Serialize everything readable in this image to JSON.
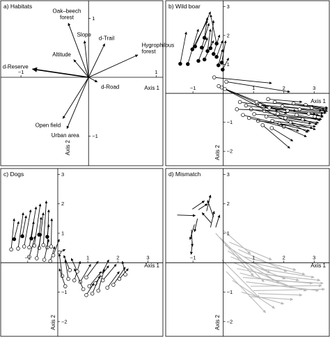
{
  "chart_data": [
    {
      "type": "scatter",
      "title": "a) Habitats",
      "xlabel": "Axis 1",
      "ylabel": "Axis 2",
      "xlim": [
        -1.3,
        1.1
      ],
      "ylim": [
        -1.5,
        1.3
      ],
      "x_ticks": [
        -1,
        1
      ],
      "x_tick_labels": [
        "−1",
        "1"
      ],
      "y_ticks": [
        -1,
        1
      ],
      "y_tick_labels": [
        "−1",
        "1"
      ],
      "grid": false,
      "vectors": [
        {
          "label": "Oak–beech forest",
          "label_lines": [
            "Oak–beech",
            "forest"
          ],
          "x": -0.3,
          "y": 0.92
        },
        {
          "label": "Slope",
          "x": -0.06,
          "y": 0.62
        },
        {
          "label": "d-Trail",
          "x": 0.24,
          "y": 0.57
        },
        {
          "label": "Altitude",
          "x": -0.22,
          "y": 0.3
        },
        {
          "label": "Hygrophilous forest",
          "label_lines": [
            "Hygrophilous",
            "forest"
          ],
          "x": 0.73,
          "y": 0.38
        },
        {
          "label": "d-Reserve",
          "x": -0.83,
          "y": 0.14
        },
        {
          "label": "d-Road",
          "x": 0.13,
          "y": -0.08
        },
        {
          "label": "Open field",
          "x": -0.38,
          "y": -0.7
        },
        {
          "label": "Urban area",
          "x": -0.32,
          "y": -0.87
        }
      ]
    },
    {
      "type": "scatter",
      "title": "b) Wild boar",
      "xlabel": "Axis 1",
      "ylabel": "Axis 2",
      "xlim": [
        -1.9,
        3.5
      ],
      "ylim": [
        -2.5,
        3.2
      ],
      "x_ticks": [
        -1,
        1,
        2,
        3
      ],
      "x_tick_labels": [
        "−1",
        "1",
        "2",
        "3"
      ],
      "y_ticks": [
        -2,
        -1,
        1,
        2,
        3
      ],
      "y_tick_labels": [
        "−2",
        "−1",
        "1",
        "2",
        "3"
      ],
      "grid": false,
      "arrows_from": [
        [
          -1.42,
          1.02
        ],
        [
          -1.17,
          1.01
        ],
        [
          -1.02,
          1.52
        ],
        [
          -0.93,
          1.62
        ],
        [
          -0.82,
          1.12
        ],
        [
          -0.71,
          1.58
        ],
        [
          -0.62,
          1.17
        ],
        [
          -0.52,
          1.46
        ],
        [
          -0.42,
          1.56
        ],
        [
          -0.32,
          1.36
        ],
        [
          -0.22,
          1.26
        ],
        [
          -0.16,
          0.97
        ],
        [
          -0.02,
          0.82
        ],
        [
          -0.05,
          1.06
        ],
        [
          -0.22,
          1.72
        ],
        [
          -0.62,
          1.92
        ],
        [
          -0.15,
          0.25
        ],
        [
          -0.05,
          0.2
        ],
        [
          0.05,
          0.15
        ],
        [
          0.55,
          -0.3
        ],
        [
          0.75,
          -0.42
        ],
        [
          0.92,
          -0.55
        ],
        [
          1.02,
          -0.72
        ],
        [
          1.15,
          -0.95
        ],
        [
          1.22,
          -0.4
        ],
        [
          1.35,
          -0.6
        ],
        [
          1.42,
          -0.8
        ],
        [
          1.52,
          -0.5
        ],
        [
          1.62,
          -0.95
        ],
        [
          1.7,
          -0.3
        ],
        [
          1.8,
          -0.7
        ],
        [
          1.85,
          -1.05
        ],
        [
          1.95,
          -0.45
        ],
        [
          2.05,
          -0.85
        ],
        [
          2.12,
          -0.6
        ],
        [
          2.22,
          -1.0
        ],
        [
          2.32,
          -0.35
        ],
        [
          2.42,
          -0.75
        ],
        [
          2.52,
          -0.55
        ],
        [
          2.62,
          -0.9
        ],
        [
          2.72,
          -0.4
        ],
        [
          2.82,
          -0.7
        ],
        [
          2.92,
          -0.5
        ],
        [
          3.02,
          -0.8
        ],
        [
          1.1,
          -0.3
        ],
        [
          1.3,
          -1.1
        ],
        [
          1.6,
          -1.2
        ],
        [
          2.0,
          -1.15
        ],
        [
          0.85,
          -0.85
        ],
        [
          0.65,
          -0.75
        ],
        [
          0.45,
          -0.55
        ],
        [
          1.48,
          -0.2
        ],
        [
          0.1,
          0.4
        ],
        [
          -0.3,
          0.55
        ]
      ],
      "arrows_to": [
        [
          -1.22,
          2.12
        ],
        [
          -0.82,
          2.22
        ],
        [
          -0.52,
          2.52
        ],
        [
          -0.42,
          2.82
        ],
        [
          -0.52,
          1.92
        ],
        [
          -0.47,
          2.42
        ],
        [
          -0.32,
          1.82
        ],
        [
          -0.42,
          2.22
        ],
        [
          -0.32,
          2.52
        ],
        [
          -0.12,
          2.02
        ],
        [
          -0.02,
          1.82
        ],
        [
          -0.02,
          1.52
        ],
        [
          0.18,
          1.22
        ],
        [
          0.08,
          1.82
        ],
        [
          -0.42,
          2.72
        ],
        [
          -0.52,
          2.62
        ],
        [
          1.45,
          -0.5
        ],
        [
          2.1,
          -0.7
        ],
        [
          2.8,
          -1.35
        ],
        [
          2.4,
          -0.6
        ],
        [
          3.05,
          -0.72
        ],
        [
          2.75,
          -0.95
        ],
        [
          3.1,
          -0.88
        ],
        [
          2.95,
          -1.2
        ],
        [
          3.25,
          -0.6
        ],
        [
          3.15,
          -0.75
        ],
        [
          2.9,
          -1.05
        ],
        [
          3.3,
          -0.7
        ],
        [
          3.05,
          -1.15
        ],
        [
          3.35,
          -0.55
        ],
        [
          3.2,
          -0.92
        ],
        [
          2.85,
          -1.3
        ],
        [
          3.4,
          -0.62
        ],
        [
          3.15,
          -1.02
        ],
        [
          3.3,
          -0.78
        ],
        [
          3.05,
          -1.25
        ],
        [
          3.45,
          -0.5
        ],
        [
          3.25,
          -0.9
        ],
        [
          3.4,
          -0.68
        ],
        [
          3.1,
          -1.08
        ],
        [
          3.45,
          -0.55
        ],
        [
          3.3,
          -0.82
        ],
        [
          3.45,
          -0.62
        ],
        [
          3.2,
          -0.95
        ],
        [
          3.0,
          -0.45
        ],
        [
          2.2,
          -1.9
        ],
        [
          2.3,
          -1.65
        ],
        [
          2.75,
          -1.5
        ],
        [
          2.5,
          -1.3
        ],
        [
          2.0,
          -1.1
        ],
        [
          1.8,
          -0.6
        ],
        [
          2.6,
          -0.3
        ],
        [
          2.2,
          0.05
        ],
        [
          1.6,
          0.35
        ]
      ]
    },
    {
      "type": "scatter",
      "title": "c) Dogs",
      "xlabel": "Axis 1",
      "ylabel": "Axis 2",
      "xlim": [
        -1.9,
        3.5
      ],
      "ylim": [
        -2.5,
        3.2
      ],
      "x_ticks": [
        -1,
        1,
        2,
        3
      ],
      "x_tick_labels": [
        "−1",
        "1",
        "2",
        "3"
      ],
      "y_ticks": [
        -2,
        -1,
        1,
        2,
        3
      ],
      "y_tick_labels": [
        "−2",
        "−1",
        "1",
        "2",
        "3"
      ],
      "grid": false,
      "arrows_from": [
        [
          -1.55,
          0.45
        ],
        [
          -1.32,
          0.48
        ],
        [
          -1.12,
          0.55
        ],
        [
          -0.95,
          0.52
        ],
        [
          -0.78,
          0.58
        ],
        [
          -0.62,
          0.5
        ],
        [
          -0.48,
          0.6
        ],
        [
          -0.35,
          0.52
        ],
        [
          -0.22,
          0.55
        ],
        [
          -1.45,
          0.8
        ],
        [
          -1.18,
          0.9
        ],
        [
          -0.88,
          0.82
        ],
        [
          -0.62,
          0.95
        ],
        [
          -0.35,
          0.88
        ],
        [
          -0.95,
          0.2
        ],
        [
          -0.7,
          0.15
        ],
        [
          -0.45,
          0.1
        ],
        [
          -0.25,
          0.05
        ],
        [
          -0.15,
          0.25
        ],
        [
          0.05,
          0.35
        ],
        [
          0.15,
          -0.45
        ],
        [
          0.35,
          -0.55
        ],
        [
          0.55,
          -0.6
        ],
        [
          0.75,
          -0.65
        ],
        [
          0.95,
          -0.5
        ],
        [
          1.05,
          -0.8
        ],
        [
          1.25,
          -0.7
        ],
        [
          1.35,
          -0.95
        ],
        [
          1.5,
          -0.6
        ],
        [
          1.65,
          -0.85
        ],
        [
          1.85,
          -0.75
        ],
        [
          2.05,
          -0.55
        ],
        [
          0.4,
          -0.25
        ],
        [
          0.65,
          -0.3
        ],
        [
          0.85,
          -0.9
        ],
        [
          1.15,
          -1.05
        ],
        [
          2.25,
          -0.4
        ],
        [
          0.25,
          -0.8
        ],
        [
          1.45,
          -0.4
        ],
        [
          0.95,
          -1.1
        ]
      ],
      "arrows_to": [
        [
          -1.45,
          1.5
        ],
        [
          -1.15,
          1.7
        ],
        [
          -0.9,
          1.8
        ],
        [
          -0.72,
          1.9
        ],
        [
          -0.58,
          2.0
        ],
        [
          -0.48,
          1.7
        ],
        [
          -0.38,
          2.1
        ],
        [
          -0.3,
          1.8
        ],
        [
          -0.2,
          1.5
        ],
        [
          -1.3,
          1.4
        ],
        [
          -1.05,
          1.6
        ],
        [
          -0.8,
          1.4
        ],
        [
          -0.55,
          1.55
        ],
        [
          -0.3,
          1.3
        ],
        [
          -0.75,
          0.9
        ],
        [
          -0.55,
          1.0
        ],
        [
          -0.3,
          0.8
        ],
        [
          -0.1,
          0.55
        ],
        [
          0.05,
          0.8
        ],
        [
          0.25,
          0.45
        ],
        [
          0.05,
          0.3
        ],
        [
          0.25,
          0.1
        ],
        [
          0.75,
          0.05
        ],
        [
          1.1,
          -0.05
        ],
        [
          1.35,
          0.05
        ],
        [
          1.45,
          -0.3
        ],
        [
          1.7,
          -0.1
        ],
        [
          1.55,
          -0.2
        ],
        [
          1.95,
          -0.05
        ],
        [
          2.05,
          -0.3
        ],
        [
          2.25,
          -0.15
        ],
        [
          2.35,
          -0.2
        ],
        [
          0.2,
          0.25
        ],
        [
          0.45,
          0.15
        ],
        [
          0.55,
          -0.2
        ],
        [
          1.4,
          -0.45
        ],
        [
          2.15,
          0.05
        ],
        [
          0.05,
          -0.2
        ],
        [
          1.7,
          0.1
        ],
        [
          1.2,
          -0.7
        ]
      ]
    },
    {
      "type": "scatter",
      "title": "d) Mismatch",
      "xlabel": "Axis 1",
      "ylabel": "Axis 2",
      "xlim": [
        -1.9,
        3.5
      ],
      "ylim": [
        -2.5,
        3.2
      ],
      "x_ticks": [
        -1,
        1,
        2,
        3
      ],
      "x_tick_labels": [
        "−1",
        "1",
        "2",
        "3"
      ],
      "y_ticks": [
        -2,
        -1,
        1,
        2,
        3
      ],
      "y_tick_labels": [
        "−2",
        "−1",
        "1",
        "2",
        "3"
      ],
      "grid": false,
      "black_arrows": [
        {
          "from": [
            -1.52,
            1.62
          ],
          "to": [
            -0.92,
            1.6
          ]
        },
        {
          "from": [
            -1.05,
            1.12
          ],
          "to": [
            -1.02,
            0.55
          ]
        },
        {
          "from": [
            -0.95,
            1.3
          ],
          "to": [
            -1.1,
            0.78
          ]
        },
        {
          "from": [
            -0.85,
            1.5
          ],
          "to": [
            -0.95,
            1.05
          ]
        },
        {
          "from": [
            -1.02,
            1.82
          ],
          "to": [
            -0.62,
            2.1
          ]
        },
        {
          "from": [
            -0.82,
            1.8
          ],
          "to": [
            -0.52,
            2.0
          ]
        },
        {
          "from": [
            -0.55,
            1.75
          ],
          "to": [
            -0.42,
            2.3
          ]
        },
        {
          "from": [
            -0.32,
            1.55
          ],
          "to": [
            -0.52,
            2.12
          ]
        },
        {
          "from": [
            -0.42,
            1.2
          ],
          "to": [
            -0.3,
            1.75
          ]
        },
        {
          "from": [
            -0.25,
            1.2
          ],
          "to": [
            -0.12,
            1.62
          ]
        },
        {
          "from": [
            -1.02,
            0.7
          ],
          "to": [
            -1.06,
            0.28
          ]
        },
        {
          "from": [
            -0.4,
            1.35
          ],
          "to": [
            -0.7,
            1.7
          ]
        }
      ],
      "grey_arrows": [
        {
          "from": [
            -0.25,
            1.0
          ],
          "to": [
            1.0,
            -0.45
          ]
        },
        {
          "from": [
            -0.1,
            0.85
          ],
          "to": [
            1.35,
            -0.65
          ]
        },
        {
          "from": [
            0.05,
            0.6
          ],
          "to": [
            1.55,
            -0.35
          ]
        },
        {
          "from": [
            0.15,
            0.4
          ],
          "to": [
            1.85,
            -0.7
          ]
        },
        {
          "from": [
            0.25,
            0.2
          ],
          "to": [
            2.05,
            -0.55
          ]
        },
        {
          "from": [
            0.35,
            0.0
          ],
          "to": [
            2.3,
            -0.85
          ]
        },
        {
          "from": [
            0.45,
            -0.2
          ],
          "to": [
            2.5,
            -0.6
          ]
        },
        {
          "from": [
            0.55,
            -0.35
          ],
          "to": [
            2.75,
            -0.95
          ]
        },
        {
          "from": [
            0.65,
            -0.5
          ],
          "to": [
            2.95,
            -0.7
          ]
        },
        {
          "from": [
            0.75,
            -0.65
          ],
          "to": [
            3.15,
            -0.95
          ]
        },
        {
          "from": [
            0.9,
            -0.8
          ],
          "to": [
            3.25,
            -0.78
          ]
        },
        {
          "from": [
            1.0,
            -0.95
          ],
          "to": [
            3.35,
            -0.9
          ]
        },
        {
          "from": [
            1.15,
            -1.05
          ],
          "to": [
            2.6,
            -1.1
          ]
        },
        {
          "from": [
            0.85,
            -1.15
          ],
          "to": [
            2.3,
            -1.25
          ]
        },
        {
          "from": [
            0.6,
            -1.0
          ],
          "to": [
            2.0,
            -1.4
          ]
        },
        {
          "from": [
            0.3,
            -0.6
          ],
          "to": [
            1.7,
            -1.55
          ]
        },
        {
          "from": [
            0.1,
            -0.3
          ],
          "to": [
            1.4,
            -1.7
          ]
        },
        {
          "from": [
            -0.05,
            0.1
          ],
          "to": [
            1.2,
            -1.2
          ]
        },
        {
          "from": [
            0.5,
            0.45
          ],
          "to": [
            2.1,
            -0.3
          ]
        },
        {
          "from": [
            0.7,
            0.2
          ],
          "to": [
            2.4,
            -0.25
          ]
        },
        {
          "from": [
            0.95,
            0.0
          ],
          "to": [
            2.7,
            -0.4
          ]
        },
        {
          "from": [
            1.2,
            -0.2
          ],
          "to": [
            3.0,
            -0.5
          ]
        },
        {
          "from": [
            1.4,
            -0.4
          ],
          "to": [
            3.2,
            -0.6
          ]
        },
        {
          "from": [
            1.6,
            -0.6
          ],
          "to": [
            3.3,
            -0.7
          ]
        },
        {
          "from": [
            0.2,
            0.7
          ],
          "to": [
            1.6,
            0.1
          ]
        },
        {
          "from": [
            0.0,
            1.1
          ],
          "to": [
            0.9,
            0.3
          ]
        }
      ]
    }
  ]
}
